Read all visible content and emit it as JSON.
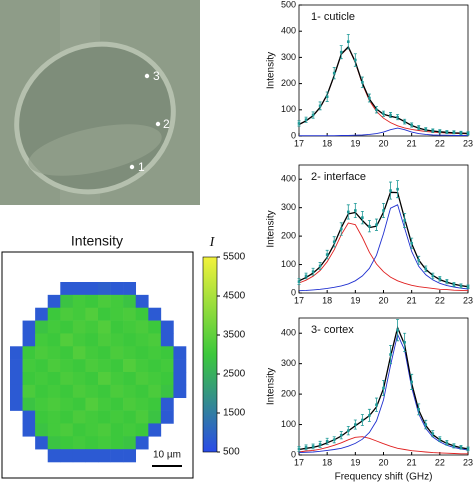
{
  "micrograph": {
    "labels": [
      "3",
      "2",
      "1"
    ]
  },
  "chart_data": [
    {
      "type": "heatmap",
      "title": "Intensity",
      "colorbar_label": "I",
      "scale_bar": "10 µm",
      "zlim": [
        500,
        5500
      ],
      "zticks": [
        500,
        1500,
        2500,
        3500,
        4500,
        5500
      ],
      "colorscale": [
        "#2a4be8",
        "#3cc83c",
        "#f2f23c"
      ],
      "z": [
        [
          null,
          null,
          null,
          null,
          800,
          800,
          800,
          900,
          800,
          800,
          null,
          null,
          null,
          null
        ],
        [
          null,
          null,
          null,
          800,
          2900,
          3100,
          3000,
          3200,
          3100,
          2900,
          800,
          null,
          null,
          null
        ],
        [
          null,
          null,
          800,
          3000,
          3200,
          3100,
          3300,
          3000,
          3100,
          3200,
          3000,
          800,
          null,
          null
        ],
        [
          null,
          800,
          2900,
          3100,
          3000,
          3200,
          3100,
          3300,
          3000,
          3100,
          3200,
          3000,
          800,
          null
        ],
        [
          null,
          800,
          3100,
          3000,
          3300,
          3100,
          3000,
          3200,
          3100,
          3000,
          3100,
          3200,
          800,
          null
        ],
        [
          800,
          3000,
          3200,
          3100,
          3000,
          3300,
          3100,
          3000,
          3200,
          3100,
          3000,
          3100,
          3000,
          800
        ],
        [
          800,
          3100,
          3000,
          3200,
          3100,
          3000,
          3200,
          3100,
          3000,
          3300,
          3100,
          3000,
          3100,
          800
        ],
        [
          800,
          3000,
          3100,
          3000,
          3200,
          3100,
          3000,
          3300,
          3100,
          3000,
          3200,
          3100,
          3000,
          800
        ],
        [
          800,
          3200,
          3000,
          3100,
          3000,
          3200,
          3100,
          3000,
          3200,
          3100,
          3000,
          3200,
          2900,
          800
        ],
        [
          800,
          2900,
          3100,
          3200,
          3100,
          3000,
          3300,
          3100,
          3000,
          3200,
          3100,
          3000,
          800,
          null
        ],
        [
          null,
          800,
          3000,
          3100,
          3000,
          3200,
          3100,
          3000,
          3100,
          3000,
          3200,
          2900,
          800,
          null
        ],
        [
          null,
          800,
          2900,
          3100,
          3200,
          3000,
          3100,
          3200,
          3000,
          3100,
          3000,
          800,
          null,
          null
        ],
        [
          null,
          null,
          800,
          2900,
          3000,
          3100,
          3000,
          3100,
          3000,
          2900,
          800,
          null,
          null,
          null
        ],
        [
          null,
          null,
          null,
          800,
          800,
          800,
          800,
          800,
          800,
          800,
          null,
          null,
          null,
          null
        ]
      ]
    },
    {
      "type": "line",
      "title": "1- cuticle",
      "ylabel": "Intensity",
      "x": [
        17,
        17.25,
        17.5,
        17.75,
        18,
        18.25,
        18.5,
        18.75,
        19,
        19.25,
        19.5,
        19.75,
        20,
        20.25,
        20.5,
        20.75,
        21,
        21.25,
        21.5,
        21.75,
        22,
        22.25,
        22.5,
        22.75,
        23
      ],
      "xlim": [
        17,
        23
      ],
      "xticks": [
        17,
        18,
        19,
        20,
        21,
        22,
        23
      ],
      "ylim": [
        0,
        500
      ],
      "yticks": [
        0,
        100,
        200,
        300,
        400,
        500
      ],
      "series": [
        {
          "mode": "points",
          "color": "#1f9a98",
          "values": [
            48,
            62,
            80,
            115,
            150,
            240,
            320,
            360,
            290,
            205,
            145,
            100,
            85,
            80,
            72,
            55,
            42,
            32,
            25,
            20,
            18,
            15,
            14,
            12,
            10
          ],
          "errors": [
            10,
            10,
            12,
            15,
            18,
            22,
            25,
            28,
            24,
            20,
            15,
            12,
            10,
            10,
            10,
            9,
            8,
            8,
            7,
            7,
            6,
            6,
            6,
            6,
            6
          ]
        },
        {
          "mode": "line",
          "color": "#e02020",
          "values": [
            43,
            57,
            77,
            108,
            157,
            230,
            311,
            338,
            280,
            198,
            135,
            94,
            68,
            51,
            39,
            31,
            25,
            21,
            17,
            15,
            13,
            11,
            10,
            9,
            8
          ]
        },
        {
          "mode": "line",
          "color": "#2030d0",
          "values": [
            1,
            1,
            1,
            1,
            1,
            1,
            2,
            2,
            3,
            4,
            6,
            9,
            15,
            24,
            30,
            24,
            15,
            9,
            6,
            4,
            3,
            3,
            2,
            2,
            2
          ]
        },
        {
          "mode": "line",
          "color": "#000000",
          "values": [
            44,
            58,
            78,
            109,
            158,
            231,
            313,
            340,
            283,
            202,
            141,
            103,
            83,
            75,
            69,
            55,
            40,
            30,
            23,
            19,
            16,
            14,
            12,
            11,
            10
          ]
        }
      ]
    },
    {
      "type": "line",
      "title": "2- interface",
      "ylabel": "Intensity",
      "x": [
        17,
        17.25,
        17.5,
        17.75,
        18,
        18.25,
        18.5,
        18.75,
        19,
        19.25,
        19.5,
        19.75,
        20,
        20.25,
        20.5,
        20.75,
        21,
        21.25,
        21.5,
        21.75,
        22,
        22.25,
        22.5,
        22.75,
        23
      ],
      "xlim": [
        17,
        23
      ],
      "xticks": [
        17,
        18,
        19,
        20,
        21,
        22,
        23
      ],
      "ylim": [
        0,
        450
      ],
      "yticks": [
        0,
        100,
        200,
        300,
        400
      ],
      "series": [
        {
          "mode": "points",
          "color": "#1f9a98",
          "values": [
            40,
            60,
            75,
            95,
            135,
            180,
            225,
            285,
            290,
            265,
            235,
            240,
            290,
            360,
            365,
            255,
            175,
            115,
            85,
            60,
            50,
            40,
            30,
            25,
            22
          ],
          "errors": [
            10,
            10,
            12,
            12,
            15,
            18,
            22,
            25,
            25,
            22,
            20,
            20,
            25,
            30,
            30,
            25,
            18,
            14,
            10,
            10,
            8,
            8,
            7,
            7,
            6
          ]
        },
        {
          "mode": "line",
          "color": "#e02020",
          "values": [
            35,
            45,
            59,
            79,
            110,
            152,
            205,
            246,
            240,
            195,
            143,
            102,
            75,
            56,
            43,
            34,
            27,
            22,
            19,
            16,
            13,
            12,
            10,
            9,
            8
          ]
        },
        {
          "mode": "line",
          "color": "#2030d0",
          "values": [
            8,
            9,
            11,
            13,
            16,
            20,
            25,
            32,
            43,
            60,
            87,
            133,
            209,
            298,
            310,
            228,
            146,
            94,
            64,
            46,
            34,
            26,
            21,
            17,
            14
          ]
        },
        {
          "mode": "line",
          "color": "#000000",
          "values": [
            43,
            54,
            70,
            92,
            126,
            172,
            230,
            278,
            283,
            255,
            230,
            235,
            284,
            354,
            353,
            262,
            173,
            116,
            83,
            62,
            47,
            38,
            31,
            26,
            22
          ]
        }
      ]
    },
    {
      "type": "line",
      "title": "3- cortex",
      "ylabel": "Intensity",
      "xlabel": "Frequency shift (GHz)",
      "x": [
        17,
        17.25,
        17.5,
        17.75,
        18,
        18.25,
        18.5,
        18.75,
        19,
        19.25,
        19.5,
        19.75,
        20,
        20.25,
        20.5,
        20.75,
        21,
        21.25,
        21.5,
        21.75,
        22,
        22.25,
        22.5,
        22.75,
        23
      ],
      "xlim": [
        17,
        23
      ],
      "xticks": [
        17,
        18,
        19,
        20,
        21,
        22,
        23
      ],
      "ylim": [
        0,
        450
      ],
      "yticks": [
        0,
        100,
        200,
        300,
        400
      ],
      "series": [
        {
          "mode": "points",
          "color": "#1f9a98",
          "values": [
            20,
            25,
            28,
            35,
            45,
            50,
            65,
            80,
            100,
            115,
            130,
            165,
            220,
            330,
            410,
            370,
            240,
            150,
            100,
            70,
            52,
            40,
            30,
            25,
            20
          ],
          "errors": [
            8,
            8,
            8,
            10,
            10,
            10,
            12,
            14,
            15,
            18,
            20,
            22,
            25,
            30,
            35,
            30,
            25,
            18,
            14,
            10,
            8,
            8,
            7,
            6,
            6
          ]
        },
        {
          "mode": "line",
          "color": "#e02020",
          "values": [
            10,
            13,
            15,
            19,
            25,
            32,
            40,
            50,
            58,
            60,
            55,
            46,
            37,
            29,
            22,
            18,
            14,
            12,
            10,
            8,
            7,
            6,
            5,
            4,
            4
          ]
        },
        {
          "mode": "line",
          "color": "#2030d0",
          "values": [
            8,
            9,
            10,
            12,
            15,
            18,
            22,
            29,
            38,
            52,
            74,
            112,
            181,
            294,
            396,
            345,
            221,
            135,
            87,
            59,
            43,
            32,
            25,
            20,
            16
          ]
        },
        {
          "mode": "line",
          "color": "#000000",
          "values": [
            18,
            22,
            25,
            31,
            40,
            50,
            62,
            79,
            96,
            112,
            129,
            158,
            218,
            323,
            418,
            363,
            235,
            147,
            97,
            67,
            50,
            38,
            30,
            24,
            20
          ]
        }
      ]
    }
  ]
}
